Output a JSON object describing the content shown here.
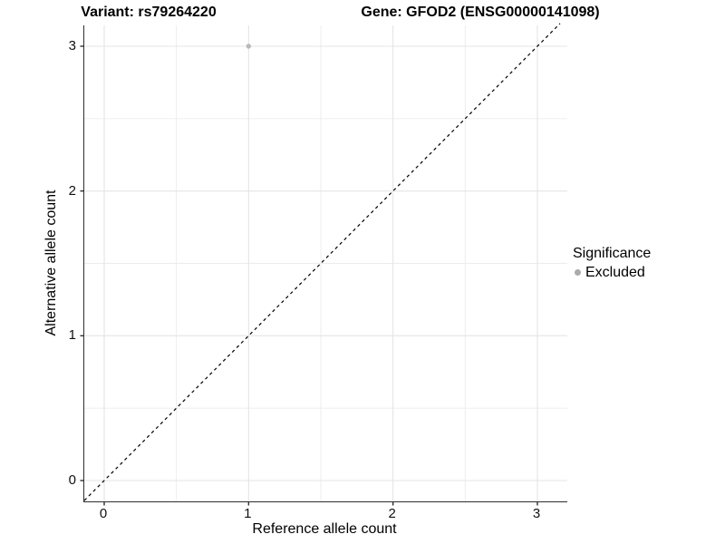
{
  "header": {
    "variant_title": "Variant: rs79264220",
    "gene_title": "Gene: GFOD2 (ENSG00000141098)"
  },
  "chart_data": {
    "type": "scatter",
    "xlabel": "Reference allele count",
    "ylabel": "Alternative allele count",
    "x_ticks": [
      "0",
      "1",
      "2",
      "3"
    ],
    "y_ticks": [
      "0",
      "1",
      "2",
      "3"
    ],
    "x_tick_values": [
      0,
      1,
      2,
      3
    ],
    "y_tick_values": [
      0,
      1,
      2,
      3
    ],
    "xlim": [
      -0.138,
      3.207
    ],
    "ylim": [
      -0.144,
      3.157
    ],
    "grid": {
      "major": [
        0,
        1,
        2,
        3
      ],
      "minor": [
        0.5,
        1.5,
        2.5
      ],
      "major_color": "#e4e4e4",
      "minor_color": "#ececec"
    },
    "reference_line": {
      "type": "identity",
      "style": "dashed",
      "color": "#000000"
    },
    "series": [
      {
        "name": "Excluded",
        "color": "#b9b9b9",
        "points": [
          {
            "x": 1,
            "y": 3
          }
        ]
      }
    ],
    "legend": {
      "title": "Significance",
      "position": "right",
      "entries": [
        {
          "label": "Excluded",
          "color": "#ababab",
          "marker": "circle"
        }
      ]
    }
  },
  "colors": {
    "background": "#ffffff",
    "axis_line": "#2e2e2e",
    "text": "#000000"
  }
}
